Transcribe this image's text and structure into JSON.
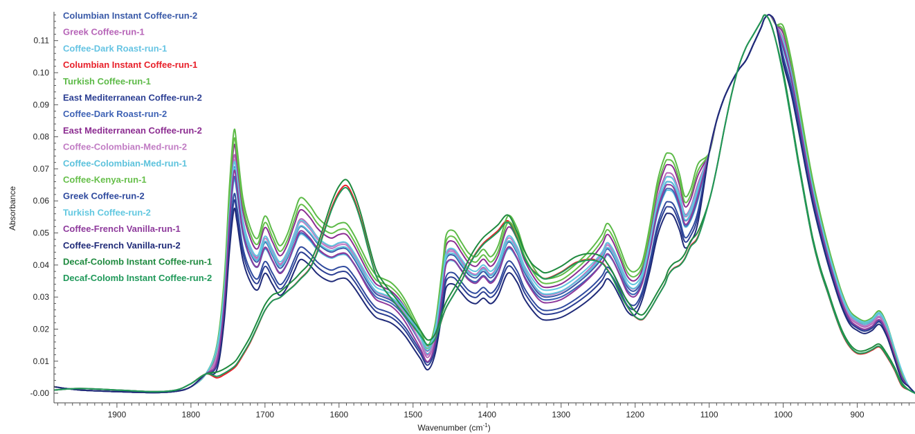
{
  "chart_data": {
    "type": "line",
    "title": "",
    "xlabel": "Wavenumber (cm",
    "xlabel_sup": "-1",
    "xlabel_end": ")",
    "ylabel": "Absorbance",
    "xlim": [
      1985,
      822
    ],
    "ylim": [
      -0.003,
      0.119
    ],
    "x_reversed": true,
    "grid": false,
    "legend_position": "top-left",
    "x_ticks": [
      {
        "value": 1900,
        "label": "1900"
      },
      {
        "value": 1800,
        "label": "1800"
      },
      {
        "value": 1700,
        "label": "1700"
      },
      {
        "value": 1600,
        "label": "1600"
      },
      {
        "value": 1500,
        "label": "1500"
      },
      {
        "value": 1400,
        "label": "1400"
      },
      {
        "value": 1300,
        "label": "1300"
      },
      {
        "value": 1200,
        "label": "1200"
      },
      {
        "value": 1100,
        "label": "1100"
      },
      {
        "value": 1000,
        "label": "1000"
      },
      {
        "value": 900,
        "label": "900"
      }
    ],
    "y_ticks": [
      {
        "value": 0.0,
        "label": "-0.00"
      },
      {
        "value": 0.01,
        "label": "0.01"
      },
      {
        "value": 0.02,
        "label": "0.02"
      },
      {
        "value": 0.03,
        "label": "0.03"
      },
      {
        "value": 0.04,
        "label": "0.04"
      },
      {
        "value": 0.05,
        "label": "0.05"
      },
      {
        "value": 0.06,
        "label": "0.06"
      },
      {
        "value": 0.07,
        "label": "0.07"
      },
      {
        "value": 0.08,
        "label": "0.08"
      },
      {
        "value": 0.09,
        "label": "0.09"
      },
      {
        "value": 0.1,
        "label": "0.10"
      },
      {
        "value": 0.11,
        "label": "0.11"
      }
    ],
    "x": [
      1985,
      1950,
      1900,
      1850,
      1820,
      1800,
      1780,
      1765,
      1755,
      1748,
      1742,
      1738,
      1730,
      1720,
      1710,
      1700,
      1690,
      1680,
      1670,
      1660,
      1652,
      1640,
      1630,
      1620,
      1610,
      1600,
      1590,
      1580,
      1570,
      1560,
      1550,
      1540,
      1530,
      1520,
      1510,
      1500,
      1490,
      1480,
      1470,
      1460,
      1455,
      1445,
      1435,
      1425,
      1415,
      1405,
      1395,
      1385,
      1372,
      1360,
      1350,
      1340,
      1330,
      1320,
      1300,
      1280,
      1260,
      1245,
      1238,
      1230,
      1220,
      1210,
      1200,
      1190,
      1180,
      1170,
      1160,
      1155,
      1148,
      1140,
      1133,
      1125,
      1115,
      1100,
      1090,
      1080,
      1070,
      1060,
      1050,
      1040,
      1030,
      1025,
      1018,
      1010,
      1000,
      990,
      980,
      970,
      960,
      950,
      940,
      930,
      920,
      910,
      900,
      890,
      880,
      870,
      860,
      850,
      840,
      830,
      822
    ],
    "series": [
      {
        "name": "Columbian Instant Coffee-run-2",
        "color": "#3a5aa8",
        "group": "A",
        "s": 1.0,
        "so": 0.0
      },
      {
        "name": "Greek Coffee-run-1",
        "color": "#b765b8",
        "group": "A",
        "s": 1.08,
        "so": -0.003
      },
      {
        "name": "Coffee-Dark Roast-run-1",
        "color": "#66c4e3",
        "group": "A",
        "s": 0.93,
        "so": 0.002
      },
      {
        "name": "Columbian Instant Coffee-run-1",
        "color": "#e8202a",
        "group": "B",
        "s": 1.0,
        "so": -0.002
      },
      {
        "name": "Turkish Coffee-run-1",
        "color": "#5cba47",
        "group": "A",
        "s": 1.15,
        "so": 0.002
      },
      {
        "name": "East Mediterranean Coffee-run-2",
        "color": "#2c3f93",
        "group": "A",
        "s": 0.88,
        "so": -0.003
      },
      {
        "name": "Coffee-Dark Roast-run-2",
        "color": "#3f63b5",
        "group": "A",
        "s": 0.95,
        "so": 0.001
      },
      {
        "name": "East Mediterranean Coffee-run-2",
        "color": "#8c2d91",
        "group": "A",
        "s": 1.1,
        "so": 0.0
      },
      {
        "name": "Coffee-Colombian-Med-run-2",
        "color": "#c17cc4",
        "group": "A",
        "s": 1.04,
        "so": -0.001
      },
      {
        "name": "Coffee-Colombian-Med-run-1",
        "color": "#5cc2dc",
        "group": "A",
        "s": 0.97,
        "so": 0.003
      },
      {
        "name": "Coffee-Kenya-run-1",
        "color": "#66bf4a",
        "group": "A",
        "s": 1.12,
        "so": 0.001
      },
      {
        "name": "Greek Coffee-run-2",
        "color": "#2f4a9e",
        "group": "A",
        "s": 0.9,
        "so": -0.002
      },
      {
        "name": "Turkish Coffee-run-2",
        "color": "#62c8e0",
        "group": "A",
        "s": 0.99,
        "so": 0.004
      },
      {
        "name": "Coffee-French Vanilla-run-1",
        "color": "#8e3a9c",
        "group": "A",
        "s": 1.02,
        "so": -0.004
      },
      {
        "name": "Coffee-French Vanilla-run-2",
        "color": "#1f2a78",
        "group": "A",
        "s": 0.86,
        "so": -0.005
      },
      {
        "name": "Decaf-Colomb Instant Coffee-run-1",
        "color": "#1f8a3f",
        "group": "B",
        "s": 1.0,
        "so": 0.001
      },
      {
        "name": "Decaf-Colomb Instant Coffee-run-2",
        "color": "#20995a",
        "group": "B",
        "s": 0.98,
        "so": -0.001
      }
    ],
    "profiles": {
      "A": [
        0.002,
        0.001,
        0.0005,
        0.0002,
        0.0006,
        0.002,
        0.006,
        0.012,
        0.03,
        0.055,
        0.07,
        0.066,
        0.052,
        0.044,
        0.041,
        0.047,
        0.043,
        0.039,
        0.042,
        0.048,
        0.052,
        0.05,
        0.047,
        0.045,
        0.044,
        0.045,
        0.045,
        0.042,
        0.038,
        0.034,
        0.031,
        0.03,
        0.029,
        0.027,
        0.024,
        0.02,
        0.016,
        0.012,
        0.018,
        0.034,
        0.042,
        0.043,
        0.04,
        0.037,
        0.036,
        0.038,
        0.036,
        0.039,
        0.047,
        0.044,
        0.038,
        0.034,
        0.031,
        0.03,
        0.031,
        0.034,
        0.038,
        0.042,
        0.045,
        0.043,
        0.038,
        0.033,
        0.032,
        0.036,
        0.046,
        0.058,
        0.065,
        0.066,
        0.065,
        0.06,
        0.054,
        0.056,
        0.063,
        0.075,
        0.085,
        0.092,
        0.097,
        0.101,
        0.104,
        0.109,
        0.114,
        0.117,
        0.118,
        0.115,
        0.109,
        0.1,
        0.088,
        0.075,
        0.063,
        0.053,
        0.044,
        0.036,
        0.029,
        0.024,
        0.022,
        0.021,
        0.022,
        0.024,
        0.02,
        0.013,
        0.006,
        0.002,
        0.0
      ],
      "B": [
        0.001,
        0.0015,
        0.001,
        0.0005,
        0.001,
        0.003,
        0.006,
        0.006,
        0.007,
        0.008,
        0.009,
        0.01,
        0.013,
        0.017,
        0.022,
        0.027,
        0.03,
        0.031,
        0.033,
        0.035,
        0.037,
        0.04,
        0.045,
        0.052,
        0.059,
        0.064,
        0.066,
        0.062,
        0.055,
        0.046,
        0.038,
        0.034,
        0.031,
        0.028,
        0.025,
        0.022,
        0.019,
        0.016,
        0.018,
        0.025,
        0.028,
        0.032,
        0.036,
        0.041,
        0.045,
        0.048,
        0.05,
        0.052,
        0.055,
        0.05,
        0.044,
        0.04,
        0.038,
        0.037,
        0.039,
        0.042,
        0.043,
        0.042,
        0.04,
        0.037,
        0.032,
        0.028,
        0.025,
        0.024,
        0.027,
        0.031,
        0.035,
        0.038,
        0.04,
        0.041,
        0.043,
        0.047,
        0.05,
        0.06,
        0.07,
        0.082,
        0.093,
        0.102,
        0.108,
        0.112,
        0.116,
        0.118,
        0.116,
        0.11,
        0.1,
        0.087,
        0.073,
        0.06,
        0.048,
        0.039,
        0.032,
        0.025,
        0.019,
        0.015,
        0.013,
        0.013,
        0.014,
        0.015,
        0.012,
        0.008,
        0.003,
        0.001,
        0.0
      ]
    }
  }
}
